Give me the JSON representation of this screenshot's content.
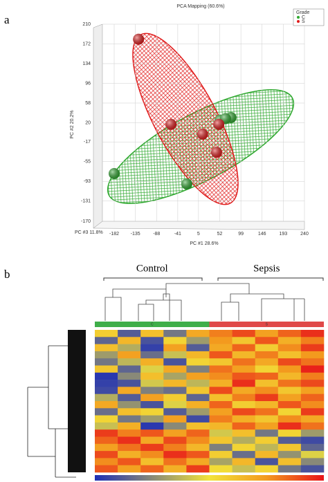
{
  "panels": [
    "a",
    "b"
  ],
  "chart_data": [
    {
      "type": "scatter3d",
      "title": "PCA Mapping (60.6%)",
      "x_label": "PC #1 28.6%",
      "y_label": "PC #2 20.2%",
      "z_label": "PC #3 11.8%",
      "legend_title": "Grade",
      "legend": "top-right",
      "grid": true,
      "xlim": [
        -182,
        240
      ],
      "xticks": [
        -182,
        -135,
        -88,
        -41,
        5,
        52,
        99,
        146,
        193,
        240
      ],
      "ylim": [
        -170,
        210
      ],
      "yticks": [
        210,
        172,
        134,
        96,
        58,
        20,
        -17,
        -55,
        -93,
        -131,
        -170
      ],
      "series": [
        {
          "name": "C",
          "color": "#2fa82f",
          "x": [
            -182,
            -21,
            53,
            77,
            65
          ],
          "values": [
            -78,
            -98,
            25,
            30,
            28
          ]
        },
        {
          "name": "S",
          "color": "#e01b1b",
          "x": [
            -128,
            -56,
            14,
            50,
            45
          ],
          "values": [
            181,
            17,
            -2,
            17,
            -37
          ]
        }
      ]
    },
    {
      "type": "heatmap",
      "clim": [
        -2,
        2
      ],
      "groups": [
        {
          "name": "Control",
          "code": "C",
          "color": "#3fae49",
          "columns": 5
        },
        {
          "name": "Sepsis",
          "code": "S",
          "color": "#e04848",
          "columns": 5
        }
      ],
      "values": [
        [
          0.3,
          -1.5,
          0.5,
          -1.2,
          0.8,
          1.2,
          1.6,
          0.9,
          1.4,
          1.8
        ],
        [
          -1.4,
          0.6,
          -1.6,
          0.2,
          -0.8,
          1.0,
          0.4,
          1.5,
          0.7,
          1.2
        ],
        [
          0.5,
          -0.6,
          -1.8,
          0.9,
          -1.5,
          0.8,
          1.4,
          0.3,
          1.1,
          1.7
        ],
        [
          -0.8,
          0.9,
          -1.3,
          -0.4,
          0.6,
          1.5,
          0.6,
          1.2,
          0.5,
          1.0
        ],
        [
          -1.2,
          -0.5,
          0.7,
          -1.6,
          0.2,
          0.4,
          1.3,
          0.8,
          1.6,
          1.3
        ],
        [
          0.4,
          -1.4,
          -0.2,
          0.8,
          -1.1,
          1.3,
          0.9,
          0.2,
          1.0,
          1.9
        ],
        [
          -1.9,
          -1.0,
          0.5,
          -0.7,
          0.9,
          1.1,
          1.5,
          1.4,
          0.6,
          1.2
        ],
        [
          -1.8,
          -1.6,
          -0.3,
          0.6,
          -0.5,
          0.7,
          1.8,
          0.5,
          1.3,
          1.6
        ],
        [
          -1.7,
          0.8,
          -1.1,
          -1.3,
          0.4,
          1.6,
          0.8,
          1.1,
          0.4,
          0.9
        ],
        [
          -0.6,
          -1.5,
          0.9,
          0.3,
          -1.4,
          0.5,
          1.2,
          1.7,
          0.9,
          1.4
        ],
        [
          0.8,
          -0.9,
          -1.6,
          -0.2,
          0.7,
          1.4,
          0.3,
          0.6,
          1.5,
          1.1
        ],
        [
          -1.3,
          0.5,
          0.2,
          -1.5,
          -0.8,
          0.9,
          1.6,
          1.3,
          0.2,
          1.7
        ],
        [
          0.2,
          -1.2,
          -0.8,
          0.9,
          -1.7,
          1.2,
          0.7,
          0.4,
          1.1,
          0.8
        ],
        [
          -0.4,
          0.7,
          -1.9,
          -1.0,
          0.5,
          0.6,
          1.4,
          0.9,
          1.8,
          1.3
        ],
        [
          1.7,
          1.2,
          1.5,
          0.9,
          1.4,
          -0.3,
          0.5,
          -1.2,
          0.2,
          -0.8
        ],
        [
          1.4,
          1.8,
          0.8,
          1.6,
          1.1,
          0.4,
          -0.6,
          0.3,
          -1.5,
          -1.7
        ],
        [
          0.9,
          1.3,
          1.7,
          1.2,
          0.6,
          -1.1,
          0.2,
          -0.5,
          0.4,
          -1.4
        ],
        [
          1.6,
          0.7,
          1.1,
          1.8,
          1.5,
          0.3,
          -1.3,
          0.6,
          -0.9,
          -0.2
        ],
        [
          1.1,
          1.5,
          0.5,
          1.3,
          0.8,
          -0.7,
          0.6,
          -1.6,
          0.5,
          -1.0
        ],
        [
          1.5,
          0.9,
          1.4,
          0.7,
          1.7,
          0.1,
          -0.4,
          0.2,
          -1.2,
          -1.6
        ]
      ]
    }
  ]
}
